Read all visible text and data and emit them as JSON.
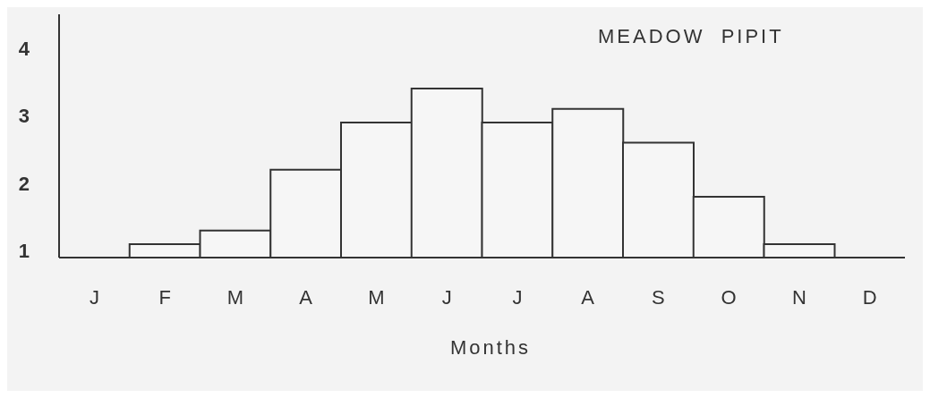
{
  "chart_data": {
    "type": "bar",
    "title": "MEADOW  PIPIT",
    "xlabel": "Months",
    "categories": [
      "J",
      "F",
      "M",
      "A",
      "M",
      "J",
      "J",
      "A",
      "S",
      "O",
      "N",
      "D"
    ],
    "values": [
      null,
      1.1,
      1.3,
      2.2,
      2.9,
      3.4,
      2.9,
      3.1,
      2.6,
      1.8,
      1.1,
      null
    ],
    "color": "#333333",
    "ylim": [
      0.9,
      4.5
    ],
    "yticks": [
      1,
      2,
      3,
      4
    ]
  }
}
